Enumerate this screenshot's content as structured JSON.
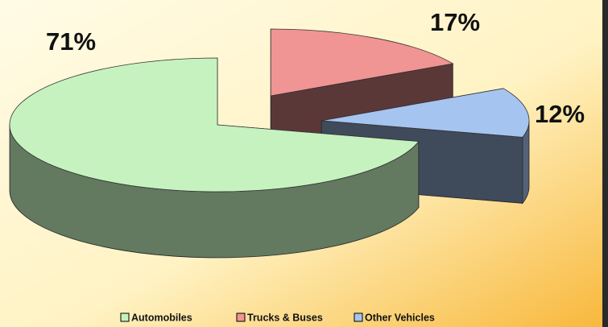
{
  "chart_data": {
    "type": "pie3d",
    "categories": [
      "Automobiles",
      "Trucks & Buses",
      "Other Vehicles"
    ],
    "values": [
      71,
      17,
      12
    ],
    "value_labels": [
      "71%",
      "17%",
      "12%"
    ],
    "colors": [
      "#c6f2c0",
      "#f09494",
      "#a6c4f0"
    ],
    "legend": "bottom"
  }
}
